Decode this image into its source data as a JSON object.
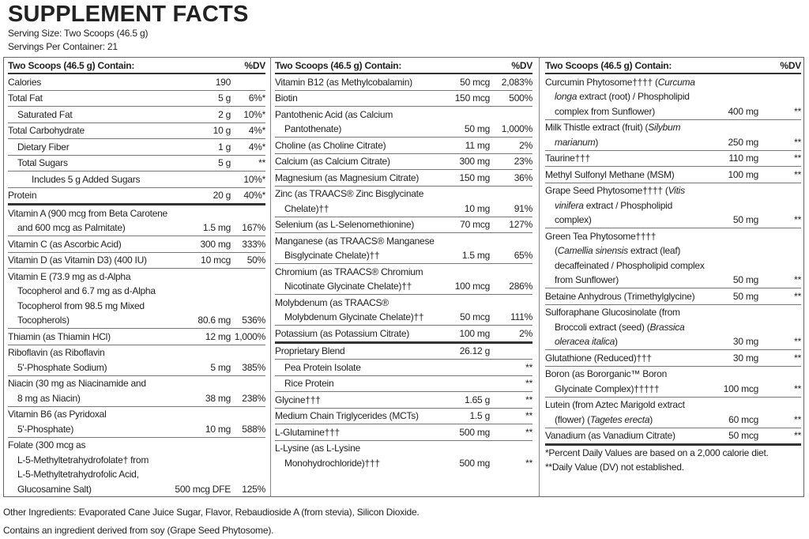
{
  "title": "SUPPLEMENT FACTS",
  "serving_size": "Serving Size: Two Scoops (46.5 g)",
  "servings_per_container": "Servings Per Container: 21",
  "columns": [
    {
      "header": {
        "label": "Two Scoops (46.5 g) Contain:",
        "dv": "%DV"
      },
      "rows": [
        {
          "name": [
            "Calories"
          ],
          "amount": "190"
        },
        {
          "name": [
            "Total Fat"
          ],
          "amount": "5 g",
          "dv": "6%*"
        },
        {
          "name": [
            "Saturated Fat"
          ],
          "amount": "2 g",
          "dv": "10%*",
          "indent": 1
        },
        {
          "name": [
            "Total Carbohydrate"
          ],
          "amount": "10 g",
          "dv": "4%*"
        },
        {
          "name": [
            "Dietary Fiber"
          ],
          "amount": "1 g",
          "dv": "4%*",
          "indent": 1
        },
        {
          "name": [
            "Total Sugars"
          ],
          "amount": "5 g",
          "dv": "**",
          "indent": 1
        },
        {
          "name": [
            "Includes 5 g Added Sugars"
          ],
          "dv": "10%*",
          "indent": 2
        },
        {
          "name": [
            "Protein"
          ],
          "amount": "20 g",
          "dv": "40%*",
          "thick_rule": true
        },
        {
          "name": [
            "Vitamin A (900 mcg from Beta Carotene",
            "and 600 mcg as Palmitate)"
          ],
          "amount": "1.5 mg",
          "dv": "167%"
        },
        {
          "name": [
            "Vitamin C (as Ascorbic Acid)"
          ],
          "amount": "300 mg",
          "dv": "333%"
        },
        {
          "name": [
            "Vitamin D (as Vitamin D3) (400 IU)"
          ],
          "amount": "10 mcg",
          "dv": "50%"
        },
        {
          "name": [
            "Vitamin E (73.9 mg as d-Alpha",
            "Tocopherol and 6.7 mg as d-Alpha",
            "Tocopherol from 98.5 mg Mixed",
            "Tocopherols)"
          ],
          "amount": "80.6 mg",
          "dv": "536%"
        },
        {
          "name": [
            "Thiamin (as Thiamin HCl)"
          ],
          "amount": "12 mg",
          "dv": "1,000%"
        },
        {
          "name": [
            "Riboflavin (as Riboflavin",
            "5'-Phosphate Sodium)"
          ],
          "amount": "5 mg",
          "dv": "385%"
        },
        {
          "name": [
            "Niacin (30 mg as Niacinamide and",
            "8 mg as Niacin)"
          ],
          "amount": "38 mg",
          "dv": "238%"
        },
        {
          "name": [
            "Vitamin B6 (as Pyridoxal",
            "5'-Phosphate)"
          ],
          "amount": "10 mg",
          "dv": "588%"
        },
        {
          "name": [
            "Folate (300 mcg as",
            "L-5-Methyltetrahydrofolate† from",
            "L-5-Methyltetrahydrofolic Acid,",
            "Glucosamine Salt)"
          ],
          "amount": "500 mcg DFE",
          "dv": "125%"
        }
      ]
    },
    {
      "header": {
        "label": "Two Scoops (46.5 g) Contain:",
        "dv": "%DV"
      },
      "rows": [
        {
          "name": [
            "Vitamin B12 (as Methylcobalamin)"
          ],
          "amount": "50 mcg",
          "dv": "2,083%"
        },
        {
          "name": [
            "Biotin"
          ],
          "amount": "150 mcg",
          "dv": "500%"
        },
        {
          "name": [
            "Pantothenic Acid (as Calcium",
            "Pantothenate)"
          ],
          "amount": "50 mg",
          "dv": "1,000%"
        },
        {
          "name": [
            "Choline (as Choline Citrate)"
          ],
          "amount": "11 mg",
          "dv": "2%"
        },
        {
          "name": [
            "Calcium (as Calcium Citrate)"
          ],
          "amount": "300 mg",
          "dv": "23%"
        },
        {
          "name": [
            "Magnesium (as Magnesium Citrate)"
          ],
          "amount": "150 mg",
          "dv": "36%"
        },
        {
          "name": [
            "Zinc (as TRAACS® Zinc Bisglycinate",
            "Chelate)††"
          ],
          "amount": "10 mg",
          "dv": "91%"
        },
        {
          "name": [
            "Selenium (as L-Selenomethionine)"
          ],
          "amount": "70 mcg",
          "dv": "127%"
        },
        {
          "name": [
            "Manganese (as TRAACS® Manganese",
            "Bisglycinate Chelate)††"
          ],
          "amount": "1.5 mg",
          "dv": "65%"
        },
        {
          "name": [
            "Chromium (as TRAACS® Chromium",
            "Nicotinate Glycinate Chelate)††"
          ],
          "amount": "100 mcg",
          "dv": "286%"
        },
        {
          "name": [
            "Molybdenum (as TRAACS®",
            "Molybdenum Glycinate Chelate)††"
          ],
          "amount": "50 mcg",
          "dv": "111%"
        },
        {
          "name": [
            "Potassium (as Potassium Citrate)"
          ],
          "amount": "100 mg",
          "dv": "2%",
          "thick_rule": true
        },
        {
          "name": [
            "Proprietary Blend"
          ],
          "amount": "26.12 g"
        },
        {
          "name": [
            "Pea Protein Isolate"
          ],
          "dv": "**",
          "indent": 1
        },
        {
          "name": [
            "Rice Protein"
          ],
          "dv": "**",
          "indent": 1
        },
        {
          "name": [
            "Glycine†††"
          ],
          "amount": "1.65 g",
          "dv": "**"
        },
        {
          "name": [
            "Medium Chain Triglycerides (MCTs)"
          ],
          "amount": "1.5 g",
          "dv": "**"
        },
        {
          "name": [
            "L-Glutamine†††"
          ],
          "amount": "500 mg",
          "dv": "**"
        },
        {
          "name": [
            "L-Lysine (as L-Lysine",
            "Monohydrochloride)†††"
          ],
          "amount": "500 mg",
          "dv": "**"
        }
      ]
    },
    {
      "header": {
        "label": "Two Scoops (46.5 g) Contain:",
        "dv": "%DV"
      },
      "rows": [
        {
          "name": [
            [
              "Curcumin Phytosome†††† (",
              {
                "italic": "Curcuma"
              }
            ],
            [
              {
                "italic": "longa"
              },
              " extract (root) / Phospholipid"
            ],
            "complex from Sunflower)"
          ],
          "amount": "400 mg",
          "dv": "**"
        },
        {
          "name": [
            [
              "Milk Thistle extract (fruit) (",
              {
                "italic": "Silybum"
              }
            ],
            [
              {
                "italic": "marianum"
              },
              ")"
            ]
          ],
          "amount": "250 mg",
          "dv": "**"
        },
        {
          "name": [
            "Taurine†††"
          ],
          "amount": "110 mg",
          "dv": "**"
        },
        {
          "name": [
            "Methyl Sulfonyl Methane (MSM)"
          ],
          "amount": "100 mg",
          "dv": "**"
        },
        {
          "name": [
            [
              "Grape Seed Phytosome†††† (",
              {
                "italic": "Vitis"
              }
            ],
            [
              {
                "italic": "vinifera"
              },
              " extract / Phospholipid"
            ],
            "complex)"
          ],
          "amount": "50 mg",
          "dv": "**"
        },
        {
          "name": [
            "Green Tea Phytosome††††",
            [
              "(",
              {
                "italic": "Camellia sinensis"
              },
              " extract (leaf)"
            ],
            "decaffeinated / Phospholipid complex",
            "from Sunflower)"
          ],
          "amount": "50 mg",
          "dv": "**"
        },
        {
          "name": [
            "Betaine Anhydrous (Trimethylglycine)"
          ],
          "amount": "50 mg",
          "dv": "**"
        },
        {
          "name": [
            "Sulforaphane Glucosinolate (from",
            [
              "Broccoli extract (seed) (",
              {
                "italic": "Brassica"
              }
            ],
            [
              {
                "italic": "oleracea italica"
              },
              ")"
            ]
          ],
          "amount": "30 mg",
          "dv": "**"
        },
        {
          "name": [
            "Glutathione (Reduced)†††"
          ],
          "amount": "30 mg",
          "dv": "**"
        },
        {
          "name": [
            "Boron (as Bororganic™ Boron",
            "Glycinate Complex)†††††"
          ],
          "amount": "100 mcg",
          "dv": "**"
        },
        {
          "name": [
            "Lutein (from Aztec Marigold extract",
            [
              "(flower) (",
              {
                "italic": "Tagetes erecta"
              },
              ")"
            ]
          ],
          "amount": "60 mcg",
          "dv": "**"
        },
        {
          "name": [
            "Vanadium (as Vanadium Citrate)"
          ],
          "amount": "50 mcg",
          "dv": "**",
          "thick_rule": true
        }
      ]
    }
  ],
  "footnotes": [
    "*Percent Daily Values are based on a 2,000 calorie diet.",
    "**Daily Value (DV) not established."
  ],
  "other_ingredients": "Other Ingredients: Evaporated Cane Juice Sugar, Flavor, Rebaudioside A (from stevia), Silicon Dioxide.",
  "allergen_statement": "Contains an ingredient derived from soy (Grape Seed Phytosome)."
}
